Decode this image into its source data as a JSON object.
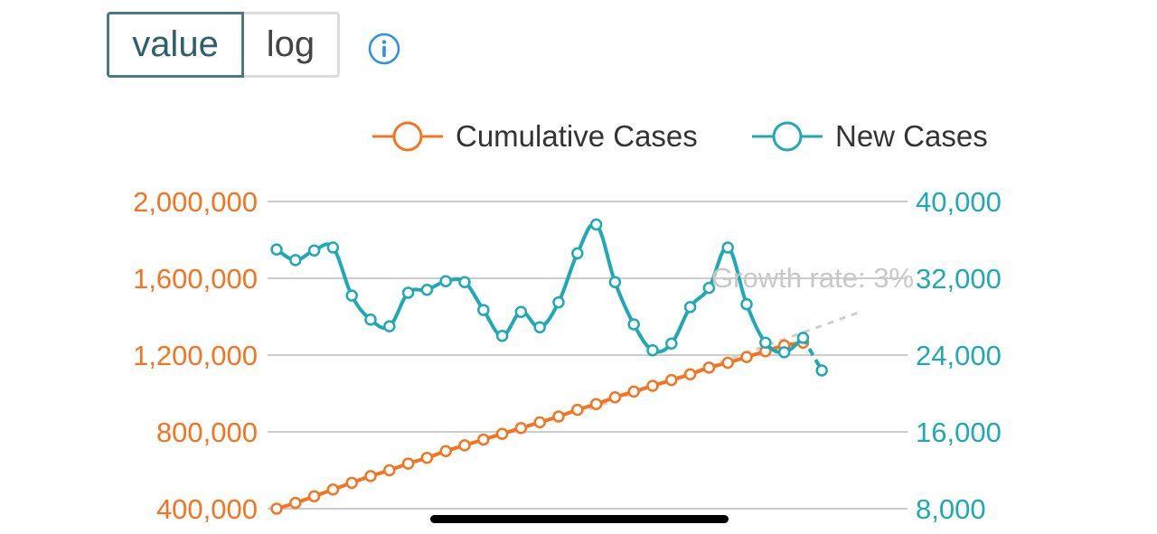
{
  "toggle": {
    "value_label": "value",
    "log_label": "log",
    "selected": "value"
  },
  "info_icon": "info-circle-icon",
  "colors": {
    "cumulative": "#f47421",
    "new_cases": "#1fa9b5",
    "grid": "#cccccc",
    "projection": "#cfcfcf",
    "toggle_active_border": "#4a7a85",
    "info": "#2b8ff0"
  },
  "chart_data": {
    "type": "line",
    "legend": [
      "Cumulative Cases",
      "New Cases"
    ],
    "legend_placement": "top-right",
    "grid": true,
    "annotation": "Growth rate: 3%",
    "left_axis": {
      "ticks": [
        "400,000",
        "800,000",
        "1,200,000",
        "1,600,000",
        "2,000,000"
      ],
      "range": [
        400000,
        2000000
      ]
    },
    "right_axis": {
      "ticks": [
        "8,000",
        "16,000",
        "24,000",
        "32,000",
        "40,000"
      ],
      "range": [
        8000,
        40000
      ]
    },
    "series": [
      {
        "name": "Cumulative Cases",
        "axis": "left",
        "values": [
          400000,
          430000,
          465000,
          500000,
          535000,
          570000,
          600000,
          635000,
          665000,
          700000,
          730000,
          760000,
          790000,
          820000,
          850000,
          880000,
          915000,
          945000,
          980000,
          1010000,
          1040000,
          1070000,
          1100000,
          1135000,
          1160000,
          1190000,
          1220000,
          1250000,
          1265000
        ]
      },
      {
        "name": "New Cases",
        "axis": "right",
        "values": [
          35000,
          33900,
          34900,
          35200,
          30200,
          27700,
          27000,
          30500,
          30800,
          31700,
          31600,
          28700,
          26000,
          28500,
          26900,
          29500,
          34600,
          37600,
          31600,
          27200,
          24500,
          25200,
          29000,
          31000,
          35200,
          29300,
          25300,
          24300,
          25800
        ]
      },
      {
        "name": "",
        "axis": "right",
        "projected": true,
        "start_index": 28,
        "values": [
          25800,
          22400
        ]
      }
    ]
  }
}
